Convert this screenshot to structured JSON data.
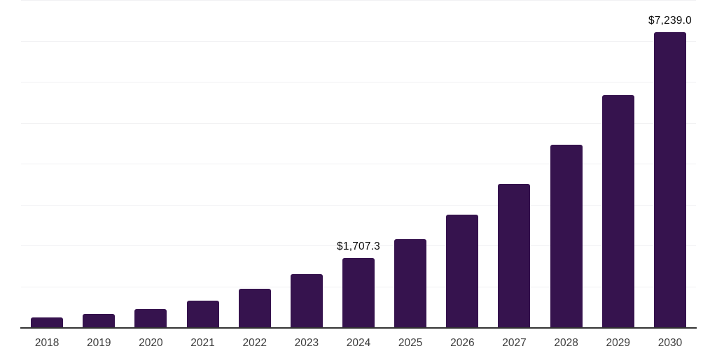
{
  "chart_data": {
    "type": "bar",
    "title": "",
    "xlabel": "",
    "ylabel": "",
    "categories": [
      "2018",
      "2019",
      "2020",
      "2021",
      "2022",
      "2023",
      "2024",
      "2025",
      "2026",
      "2027",
      "2028",
      "2029",
      "2030"
    ],
    "values": [
      250,
      342,
      461,
      671,
      952,
      1310,
      1707.3,
      2172,
      2764,
      3517,
      4475,
      5694,
      7239
    ],
    "point_labels": [
      null,
      null,
      null,
      null,
      null,
      null,
      "$1,707.3",
      null,
      null,
      null,
      null,
      null,
      "$7,239.0"
    ],
    "ylim": [
      0,
      8000
    ],
    "gridline_step": 1000,
    "grid": true,
    "legend_position": "none",
    "colors": {
      "bar": "#36134e",
      "gridline": "#f1f1f3",
      "axis_line": "#333333",
      "tick_label": "#3d3d3d",
      "data_label": "#0d0d0d",
      "background": "#ffffff"
    }
  }
}
